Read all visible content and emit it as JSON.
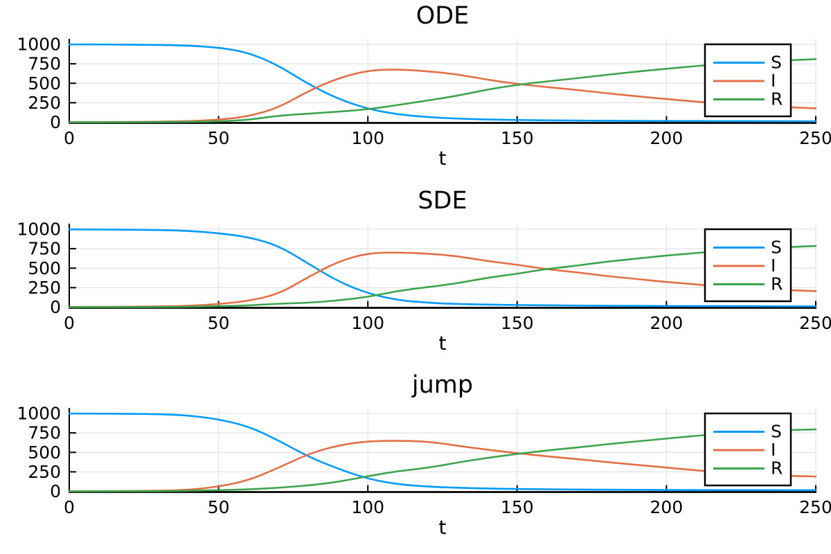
{
  "figure": {
    "background": "#ffffff"
  },
  "style": {
    "axis_color": "#000000",
    "grid_color": "#e3e3e3",
    "text_color": "#000000",
    "legend_background": "#ffffff",
    "legend_border": "#000000"
  },
  "chart_data": [
    {
      "type": "line",
      "title": "ODE",
      "xlabel": "t",
      "ylabel": "",
      "xlim": [
        0,
        250
      ],
      "ylim": [
        0,
        1050
      ],
      "xticks": [
        0,
        50,
        100,
        150,
        200,
        250
      ],
      "yticks": [
        0,
        250,
        500,
        750,
        1000
      ],
      "grid": true,
      "legend_position": "top-right",
      "x": [
        0,
        10,
        20,
        30,
        40,
        50,
        60,
        70,
        80,
        90,
        100,
        110,
        120,
        130,
        140,
        150,
        160,
        170,
        180,
        190,
        200,
        210,
        220,
        230,
        240,
        250
      ],
      "series": [
        {
          "name": "S",
          "color": "#009AFA",
          "values": [
            999,
            998,
            996,
            992,
            984,
            960,
            895,
            730,
            490,
            300,
            170,
            100,
            65,
            46,
            35,
            28,
            24,
            21,
            19,
            17,
            16,
            15,
            14,
            13,
            13,
            12
          ]
        },
        {
          "name": "I",
          "color": "#E26F46",
          "values": [
            1,
            2,
            4,
            7,
            14,
            30,
            75,
            185,
            400,
            565,
            665,
            680,
            655,
            615,
            545,
            492,
            450,
            415,
            372,
            333,
            297,
            264,
            235,
            212,
            193,
            178
          ]
        },
        {
          "name": "R",
          "color": "#3DA44E",
          "values": [
            0,
            0,
            1,
            2,
            5,
            10,
            30,
            85,
            110,
            135,
            165,
            220,
            280,
            339,
            420,
            480,
            525,
            564,
            609,
            650,
            687,
            721,
            751,
            775,
            794,
            810
          ]
        }
      ]
    },
    {
      "type": "line",
      "title": "SDE",
      "xlabel": "t",
      "ylabel": "",
      "xlim": [
        0,
        250
      ],
      "ylim": [
        0,
        1050
      ],
      "xticks": [
        0,
        50,
        100,
        150,
        200,
        250
      ],
      "yticks": [
        0,
        250,
        500,
        750,
        1000
      ],
      "grid": true,
      "legend_position": "top-right",
      "x": [
        0,
        10,
        20,
        30,
        40,
        50,
        60,
        70,
        80,
        90,
        100,
        110,
        120,
        130,
        140,
        150,
        160,
        170,
        180,
        190,
        200,
        210,
        220,
        230,
        240,
        250
      ],
      "series": [
        {
          "name": "S",
          "color": "#009AFA",
          "values": [
            998,
            996,
            994,
            990,
            980,
            950,
            900,
            790,
            560,
            330,
            175,
            90,
            55,
            40,
            32,
            27,
            23,
            20,
            18,
            16,
            15,
            14,
            13,
            12,
            11,
            10
          ]
        },
        {
          "name": "I",
          "color": "#E26F46",
          "values": [
            2,
            3,
            5,
            9,
            16,
            38,
            80,
            165,
            385,
            585,
            695,
            702,
            688,
            655,
            590,
            545,
            485,
            448,
            398,
            362,
            322,
            292,
            260,
            240,
            220,
            205
          ]
        },
        {
          "name": "R",
          "color": "#3DA44E",
          "values": [
            0,
            1,
            1,
            1,
            4,
            12,
            20,
            45,
            55,
            85,
            130,
            208,
            257,
            305,
            378,
            428,
            492,
            532,
            584,
            622,
            663,
            694,
            727,
            748,
            769,
            785
          ]
        }
      ]
    },
    {
      "type": "line",
      "title": "jump",
      "xlabel": "t",
      "ylabel": "",
      "xlim": [
        0,
        250
      ],
      "ylim": [
        0,
        1050
      ],
      "xticks": [
        0,
        50,
        100,
        150,
        200,
        250
      ],
      "yticks": [
        0,
        250,
        500,
        750,
        1000
      ],
      "grid": true,
      "legend_position": "top-right",
      "x": [
        0,
        10,
        20,
        30,
        40,
        50,
        60,
        70,
        80,
        90,
        100,
        110,
        120,
        130,
        140,
        150,
        160,
        170,
        180,
        190,
        200,
        210,
        220,
        230,
        240,
        250
      ],
      "series": [
        {
          "name": "S",
          "color": "#009AFA",
          "values": [
            999,
            997,
            995,
            990,
            975,
            925,
            835,
            655,
            445,
            290,
            160,
            90,
            60,
            45,
            36,
            30,
            26,
            23,
            21,
            19,
            18,
            17,
            16,
            16,
            15,
            15
          ]
        },
        {
          "name": "I",
          "color": "#E26F46",
          "values": [
            1,
            2,
            4,
            8,
            18,
            60,
            140,
            300,
            480,
            590,
            645,
            650,
            640,
            585,
            534,
            490,
            449,
            415,
            375,
            340,
            305,
            270,
            240,
            215,
            200,
            190
          ]
        },
        {
          "name": "R",
          "color": "#3DA44E",
          "values": [
            0,
            1,
            1,
            2,
            7,
            15,
            25,
            45,
            75,
            120,
            195,
            260,
            300,
            370,
            430,
            480,
            525,
            562,
            604,
            641,
            677,
            713,
            744,
            769,
            785,
            795
          ]
        }
      ]
    }
  ]
}
